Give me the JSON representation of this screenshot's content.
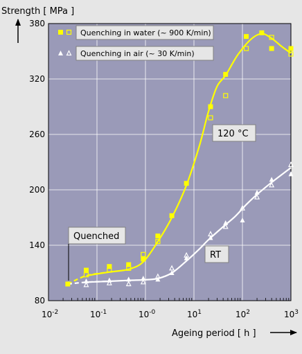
{
  "chart_data": {
    "type": "line",
    "ylabel": "Strength [ MPa ]",
    "xlabel": "Ageing period [ h ]",
    "x_scale": "log",
    "xlim": [
      0.01,
      1000
    ],
    "ylim": [
      80,
      380
    ],
    "y_ticks": [
      80,
      140,
      200,
      260,
      320,
      380
    ],
    "x_ticks": [
      {
        "value": 0.01,
        "base": "10",
        "exp": "-2"
      },
      {
        "value": 0.1,
        "base": "10",
        "exp": "-1"
      },
      {
        "value": 1,
        "base": "10",
        "exp": "-0"
      },
      {
        "value": 10,
        "base": "10",
        "exp": "1"
      },
      {
        "value": 100,
        "base": "10",
        "exp": "2"
      },
      {
        "value": 1000,
        "base": "10",
        "exp": "3"
      }
    ],
    "grid": true,
    "background": "#9a9ab8",
    "legend": [
      {
        "label": "Quenching in water (~ 900 K/min)",
        "color": "#ffff00"
      },
      {
        "label": "Quenching in air (~ 30 K/min)",
        "color": "#ffffff"
      }
    ],
    "annotations": [
      "Quenched",
      "120 °C",
      "RT"
    ],
    "quenched_point": {
      "x": 0.025,
      "y": 98
    },
    "series": [
      {
        "name": "Quenching in water (~ 900 K/min)",
        "color": "#ffff00",
        "curve": [
          [
            0.025,
            98
          ],
          [
            0.06,
            107
          ],
          [
            0.18,
            111
          ],
          [
            0.45,
            114
          ],
          [
            0.9,
            122
          ],
          [
            1.8,
            144
          ],
          [
            3.5,
            170
          ],
          [
            7,
            205
          ],
          [
            13,
            248
          ],
          [
            20,
            285
          ],
          [
            30,
            312
          ],
          [
            45,
            324
          ],
          [
            80,
            346
          ],
          [
            150,
            363
          ],
          [
            250,
            369
          ],
          [
            400,
            364
          ],
          [
            650,
            355
          ],
          [
            1000,
            348
          ]
        ],
        "filled": [
          [
            0.06,
            113
          ],
          [
            0.18,
            117
          ],
          [
            0.45,
            119
          ],
          [
            0.9,
            125
          ],
          [
            1.8,
            150
          ],
          [
            3.5,
            172
          ],
          [
            7,
            207
          ],
          [
            22,
            290
          ],
          [
            45,
            325
          ],
          [
            120,
            366
          ],
          [
            250,
            370
          ],
          [
            400,
            353
          ],
          [
            1000,
            353
          ]
        ],
        "open": [
          [
            0.06,
            108
          ],
          [
            0.18,
            113
          ],
          [
            0.45,
            115
          ],
          [
            0.9,
            130
          ],
          [
            1.8,
            144
          ],
          [
            22,
            278
          ],
          [
            45,
            302
          ],
          [
            120,
            353
          ],
          [
            400,
            365
          ],
          [
            1000,
            347
          ]
        ]
      },
      {
        "name": "Quenching in air (~ 30 K/min)",
        "color": "#ffffff",
        "curve": [
          [
            0.025,
            98
          ],
          [
            0.06,
            100
          ],
          [
            0.18,
            101
          ],
          [
            0.45,
            102
          ],
          [
            0.9,
            102.5
          ],
          [
            1.8,
            104
          ],
          [
            3.5,
            110
          ],
          [
            7,
            123
          ],
          [
            13,
            136
          ],
          [
            20,
            146
          ],
          [
            40,
            160
          ],
          [
            70,
            171
          ],
          [
            120,
            184
          ],
          [
            200,
            195
          ],
          [
            400,
            208
          ],
          [
            1000,
            224
          ]
        ],
        "filled": [
          [
            0.06,
            101
          ],
          [
            0.18,
            102
          ],
          [
            0.45,
            103
          ],
          [
            0.9,
            104
          ],
          [
            1.8,
            103
          ],
          [
            3.5,
            110
          ],
          [
            7,
            126
          ],
          [
            22,
            148
          ],
          [
            45,
            164
          ],
          [
            100,
            167
          ],
          [
            200,
            197
          ],
          [
            400,
            211
          ],
          [
            1000,
            217
          ]
        ],
        "open": [
          [
            0.06,
            97
          ],
          [
            0.18,
            99
          ],
          [
            0.45,
            98
          ],
          [
            0.9,
            100
          ],
          [
            1.8,
            106
          ],
          [
            3.5,
            115
          ],
          [
            7,
            129
          ],
          [
            22,
            152
          ],
          [
            45,
            160
          ],
          [
            100,
            180
          ],
          [
            200,
            192
          ],
          [
            400,
            205
          ],
          [
            1000,
            227
          ]
        ]
      }
    ]
  }
}
